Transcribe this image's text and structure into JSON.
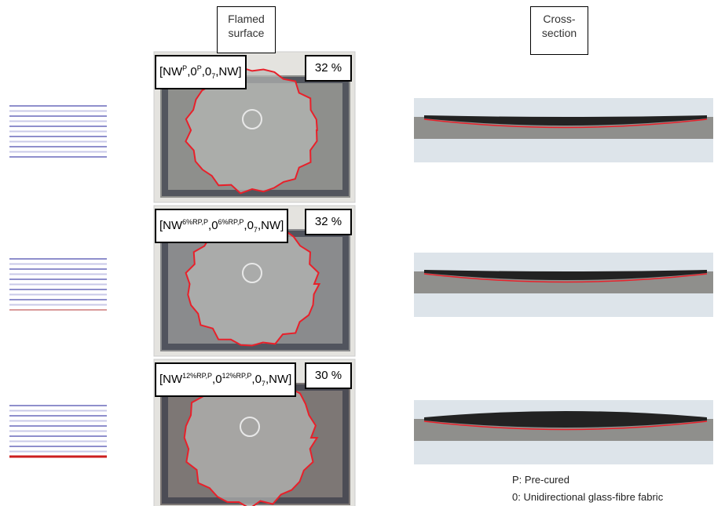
{
  "headers": [
    "Flamed surface",
    "Cross-section"
  ],
  "rows": [
    {
      "label": [
        "[NW",
        {
          "sup": "P"
        },
        ",0",
        {
          "sup": "P"
        },
        ",0",
        {
          "sub": "7"
        },
        ",NW]"
      ],
      "percent": "32 %"
    },
    {
      "label": [
        "[NW",
        {
          "sup": "6%RP,P"
        },
        ",0",
        {
          "sup": "6%RP,P"
        },
        ",0",
        {
          "sub": "7"
        },
        ",NW]"
      ],
      "percent": "32 %"
    },
    {
      "label": [
        "[NW",
        {
          "sup": "12%RP,P"
        },
        ",0",
        {
          "sup": "12%RP,P"
        },
        ",0",
        {
          "sub": "7"
        },
        ",NW]"
      ],
      "percent": "30 %"
    }
  ],
  "legend": [
    "P: Pre-cured",
    "0: Unidirectional glass-fibre fabric"
  ]
}
